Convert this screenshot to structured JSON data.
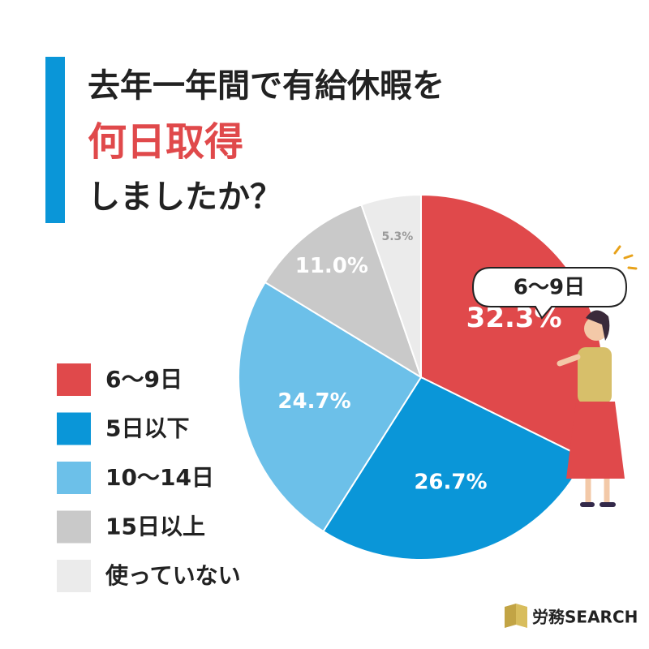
{
  "chart_data": {
    "type": "pie",
    "title": [
      "去年一年間で有給休暇を",
      "何日取得",
      "しましたか？"
    ],
    "categories": [
      "6〜9日",
      "5日以下",
      "10〜14日",
      "15日以上",
      "使っていない"
    ],
    "values": [
      32.3,
      26.7,
      24.7,
      11.0,
      5.3
    ],
    "value_labels": [
      "32.3%",
      "26.7%",
      "24.7%",
      "11.0%",
      "5.3%"
    ],
    "colors": [
      "#e0494b",
      "#0a96d8",
      "#6cc0e9",
      "#c9c9c9",
      "#ebebeb"
    ],
    "label_colors": [
      "#ffffff",
      "#ffffff",
      "#ffffff",
      "#ffffff",
      "#9a9a9a"
    ],
    "legend": "left"
  },
  "brand": "労務SEARCH"
}
